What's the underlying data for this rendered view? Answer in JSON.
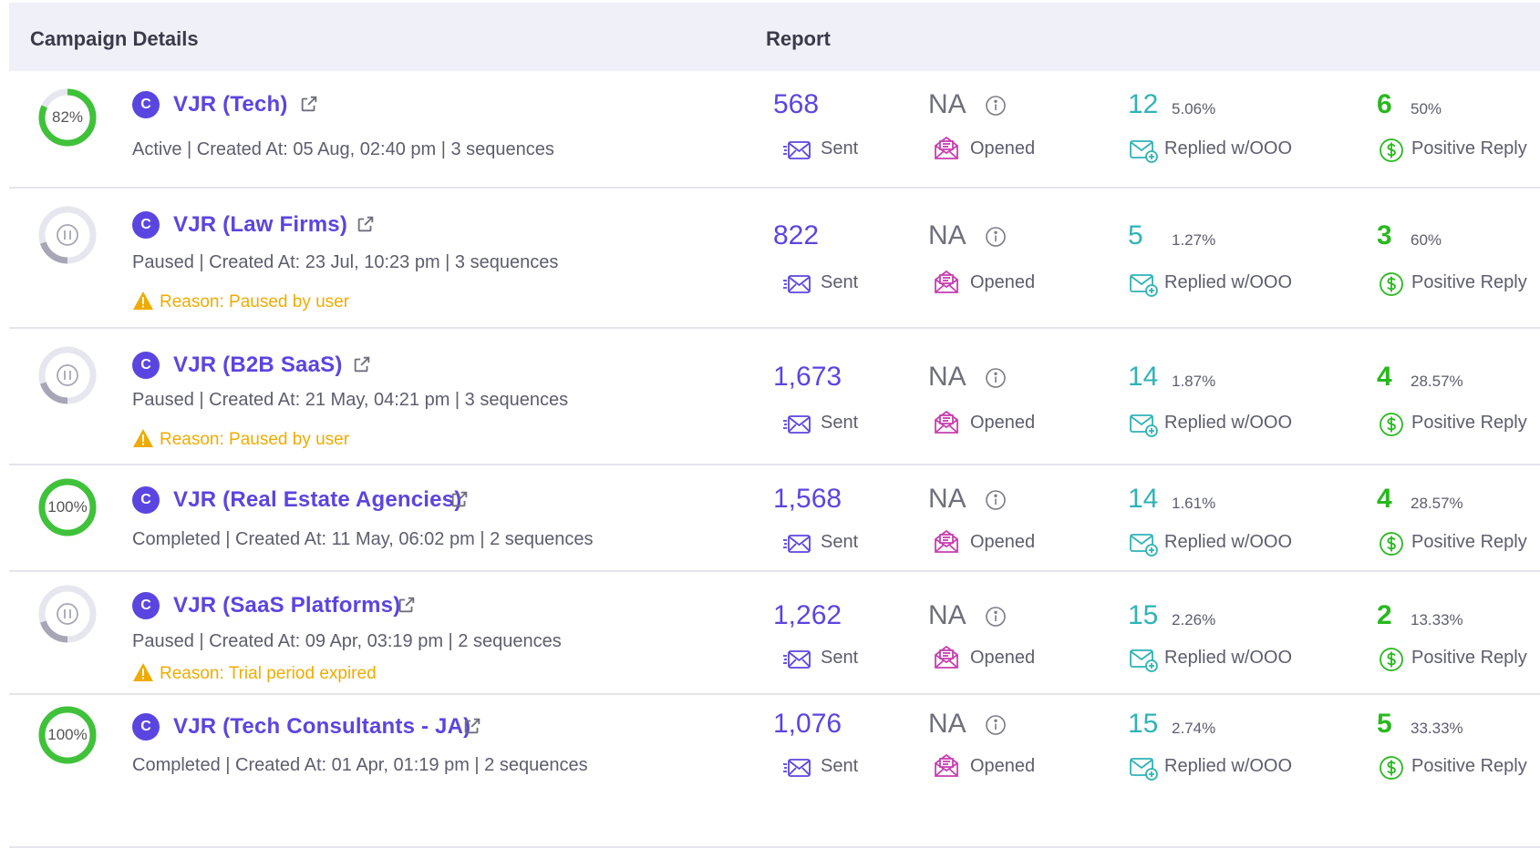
{
  "header": {
    "campaign_details": "Campaign Details",
    "report": "Report"
  },
  "labels": {
    "sent": "Sent",
    "opened": "Opened",
    "replied": "Replied w/OOO",
    "positive": "Positive Reply",
    "badge": "C"
  },
  "colors": {
    "accent": "#5b45e0",
    "teal": "#2fb3b7",
    "green": "#28b91e",
    "warning": "#f0ab00",
    "paused_ring": "#a6a6b6",
    "opened_icon": "#c83fb0"
  },
  "campaigns": [
    {
      "name": "VJR (Tech)",
      "progress_label": "82%",
      "progress": 0.82,
      "status_icon": "progress-ring",
      "status_line": "Active | Created At:  05 Aug, 02:40 pm | 3 sequences",
      "reason": "",
      "sent": "568",
      "opened": "NA",
      "replied": "12",
      "replied_pct": "5.06%",
      "positive": "6",
      "positive_pct": "50%"
    },
    {
      "name": "VJR (Law Firms)",
      "progress_label": "",
      "progress": 0.2,
      "status_icon": "pause-icon",
      "status_line": "Paused | Created At: 23 Jul, 10:23 pm | 3 sequences",
      "reason": "Reason: Paused by user",
      "sent": "822",
      "opened": "NA",
      "replied": "5",
      "replied_pct": "1.27%",
      "positive": "3",
      "positive_pct": "60%"
    },
    {
      "name": "VJR (B2B SaaS)",
      "progress_label": "",
      "progress": 0.2,
      "status_icon": "pause-icon",
      "status_line": "Paused | Created At: 21 May, 04:21 pm | 3 sequences",
      "reason": "Reason: Paused by user",
      "sent": "1,673",
      "opened": "NA",
      "replied": "14",
      "replied_pct": "1.87%",
      "positive": "4",
      "positive_pct": "28.57%"
    },
    {
      "name": "VJR (Real Estate Agencies)",
      "progress_label": "100%",
      "progress": 1.0,
      "status_icon": "progress-ring",
      "status_line": "Completed | Created At: 11 May, 06:02 pm | 2 sequences",
      "reason": "",
      "sent": "1,568",
      "opened": "NA",
      "replied": "14",
      "replied_pct": "1.61%",
      "positive": "4",
      "positive_pct": "28.57%"
    },
    {
      "name": "VJR (SaaS Platforms)",
      "progress_label": "",
      "progress": 0.2,
      "status_icon": "pause-icon",
      "status_line": "Paused | Created At: 09 Apr, 03:19 pm | 2 sequences",
      "reason": "Reason: Trial period expired",
      "sent": "1,262",
      "opened": "NA",
      "replied": "15",
      "replied_pct": "2.26%",
      "positive": "2",
      "positive_pct": "13.33%"
    },
    {
      "name": "VJR (Tech Consultants - JA)",
      "progress_label": "100%",
      "progress": 1.0,
      "status_icon": "progress-ring",
      "status_line": "Completed | Created At: 01 Apr, 01:19 pm | 2 sequences",
      "reason": "",
      "sent": "1,076",
      "opened": "NA",
      "replied": "15",
      "replied_pct": "2.74%",
      "positive": "5",
      "positive_pct": "33.33%"
    }
  ]
}
